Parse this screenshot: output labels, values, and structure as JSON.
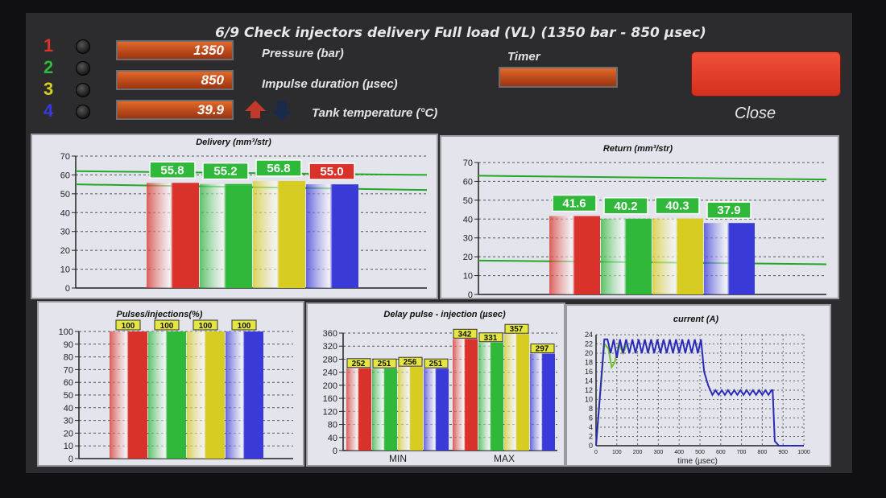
{
  "header": {
    "title": "6/9 Check  injectors delivery Full load (VL) (1350 bar - 850 µsec)",
    "injectors": [
      {
        "number": "1",
        "color": "#d8322a"
      },
      {
        "number": "2",
        "color": "#2fb83a"
      },
      {
        "number": "3",
        "color": "#d6cc22"
      },
      {
        "number": "4",
        "color": "#3a3ad8"
      }
    ],
    "pressure": {
      "value": "1350",
      "label": "Pressure (bar)"
    },
    "impulse": {
      "value": "850",
      "label": "Impulse duration (µsec)"
    },
    "tank": {
      "value": "39.9",
      "label": "Tank temperature (°C)"
    },
    "timer_label": "Timer",
    "close_label": "Close",
    "icons": [
      "temperature-up-icon",
      "temperature-down-icon"
    ]
  },
  "colors": {
    "red": "#d8322a",
    "green": "#2fb83a",
    "yellow": "#d6cc22",
    "blue": "#3a3ad8",
    "limit_line": "#22aa22"
  },
  "chart_data": [
    {
      "id": "delivery",
      "type": "bar",
      "title": "Delivery (mm³/str)",
      "categories": [
        "1",
        "2",
        "3",
        "4"
      ],
      "values": [
        55.8,
        55.2,
        56.8,
        55.0
      ],
      "labels": [
        "55.8",
        "55.2",
        "56.8",
        "55.0"
      ],
      "label_colors": [
        "#2fb83a",
        "#2fb83a",
        "#2fb83a",
        "#d8322a"
      ],
      "ylim": [
        0,
        70
      ],
      "yticks": [
        0,
        10,
        20,
        30,
        40,
        50,
        60,
        70
      ],
      "limits": [
        {
          "from": 62,
          "to": 60
        },
        {
          "from": 55,
          "to": 52
        }
      ],
      "grid": true
    },
    {
      "id": "return",
      "type": "bar",
      "title": "Return (mm³/str)",
      "categories": [
        "1",
        "2",
        "3",
        "4"
      ],
      "values": [
        41.6,
        40.2,
        40.3,
        37.9
      ],
      "labels": [
        "41.6",
        "40.2",
        "40.3",
        "37.9"
      ],
      "label_colors": [
        "#2fb83a",
        "#2fb83a",
        "#2fb83a",
        "#2fb83a"
      ],
      "ylim": [
        0,
        70
      ],
      "yticks": [
        0,
        10,
        20,
        30,
        40,
        50,
        60,
        70
      ],
      "limits": [
        {
          "from": 63,
          "to": 61
        },
        {
          "from": 18,
          "to": 16
        }
      ],
      "grid": true
    },
    {
      "id": "pulses",
      "type": "bar",
      "title": "Pulses/injections(%)",
      "categories": [
        "1",
        "2",
        "3",
        "4"
      ],
      "values": [
        100,
        100,
        100,
        100
      ],
      "labels": [
        "100",
        "100",
        "100",
        "100"
      ],
      "ylim": [
        0,
        100
      ],
      "yticks": [
        0,
        10,
        20,
        30,
        40,
        50,
        60,
        70,
        80,
        90,
        100
      ],
      "grid": true
    },
    {
      "id": "delay",
      "type": "bar",
      "title": "Delay pulse - injection (µsec)",
      "groups": [
        "MIN",
        "MAX"
      ],
      "series": [
        {
          "values": [
            252,
            342
          ]
        },
        {
          "values": [
            251,
            331
          ]
        },
        {
          "values": [
            256,
            357
          ]
        },
        {
          "values": [
            251,
            297
          ]
        }
      ],
      "ylim": [
        0,
        360
      ],
      "yticks": [
        0,
        40,
        80,
        120,
        160,
        200,
        240,
        280,
        320,
        360
      ],
      "grid": true
    },
    {
      "id": "current",
      "type": "line",
      "title": "current (A)",
      "xlabel": "time (µsec)",
      "xlim": [
        0,
        1000
      ],
      "ylim": [
        0,
        24
      ],
      "xticks": [
        0,
        100,
        200,
        300,
        400,
        500,
        600,
        700,
        800,
        900,
        1000
      ],
      "yticks": [
        0,
        2,
        4,
        6,
        8,
        10,
        12,
        14,
        16,
        18,
        20,
        22,
        24
      ],
      "grid": true,
      "series": [
        {
          "color": "#6fbf2a",
          "x": [
            0,
            40,
            60,
            75,
            90,
            110,
            130,
            150
          ],
          "y": [
            0,
            22,
            21,
            17,
            18,
            22,
            20,
            22
          ]
        },
        {
          "color": "#2a2ab8",
          "x": [
            0,
            40,
            55,
            70,
            85,
            100,
            115,
            130,
            145,
            160,
            175,
            190,
            205,
            220,
            235,
            250,
            265,
            280,
            295,
            310,
            325,
            340,
            355,
            370,
            385,
            400,
            415,
            430,
            445,
            460,
            475,
            490,
            505,
            520,
            540,
            560,
            575,
            590,
            605,
            620,
            635,
            650,
            665,
            680,
            695,
            710,
            725,
            740,
            755,
            770,
            785,
            800,
            815,
            830,
            845,
            850,
            860,
            880,
            900,
            950,
            1000
          ],
          "y": [
            0,
            23,
            23,
            20,
            23,
            19,
            23,
            20,
            23,
            20,
            23,
            20,
            23,
            20,
            23,
            20,
            23,
            20,
            23,
            20,
            23,
            20,
            23,
            20,
            23,
            20,
            23,
            20,
            23,
            20,
            23,
            20,
            23,
            16,
            13,
            11,
            12,
            11,
            12,
            11,
            12,
            11,
            12,
            11,
            12,
            11,
            12,
            11,
            12,
            11,
            12,
            11,
            12,
            11,
            12,
            12,
            1,
            0,
            0,
            0,
            0
          ]
        }
      ]
    }
  ]
}
